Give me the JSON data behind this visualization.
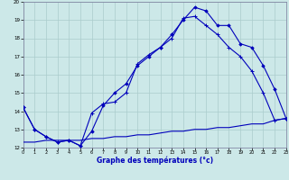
{
  "bg_color": "#cce8e8",
  "grid_color": "#aacccc",
  "line_color": "#0000bb",
  "xlabel": "Graphe des températures (°c)",
  "xlim": [
    0,
    23
  ],
  "ylim": [
    12,
    20
  ],
  "xticks": [
    0,
    1,
    2,
    3,
    4,
    5,
    6,
    7,
    8,
    9,
    10,
    11,
    12,
    13,
    14,
    15,
    16,
    17,
    18,
    19,
    20,
    21,
    22,
    23
  ],
  "yticks": [
    12,
    13,
    14,
    15,
    16,
    17,
    18,
    19,
    20
  ],
  "curve1_x": [
    0,
    1,
    2,
    3,
    4,
    5,
    6,
    7,
    8,
    9,
    10,
    11,
    12,
    13,
    14,
    15,
    16,
    17,
    18,
    19,
    20,
    21,
    22,
    23
  ],
  "curve1_y": [
    14.2,
    13.0,
    12.6,
    12.3,
    12.4,
    12.1,
    12.9,
    14.3,
    15.0,
    15.5,
    16.5,
    17.0,
    17.5,
    18.2,
    19.0,
    19.7,
    19.5,
    18.7,
    18.7,
    17.7,
    17.5,
    16.5,
    15.2,
    13.6
  ],
  "curve2_x": [
    0,
    1,
    2,
    3,
    4,
    5,
    6,
    7,
    8,
    9,
    10,
    11,
    12,
    13,
    14,
    15,
    16,
    17,
    18,
    19,
    20,
    21,
    22,
    23
  ],
  "curve2_y": [
    14.2,
    13.0,
    12.6,
    12.3,
    12.4,
    12.1,
    13.9,
    14.4,
    14.5,
    15.0,
    16.6,
    17.1,
    17.5,
    18.0,
    19.1,
    19.2,
    18.7,
    18.2,
    17.5,
    17.0,
    16.2,
    15.0,
    13.5,
    13.6
  ],
  "curve3_x": [
    0,
    1,
    2,
    3,
    4,
    5,
    6,
    7,
    8,
    9,
    10,
    11,
    12,
    13,
    14,
    15,
    16,
    17,
    18,
    19,
    20,
    21,
    22,
    23
  ],
  "curve3_y": [
    12.3,
    12.3,
    12.4,
    12.4,
    12.4,
    12.4,
    12.5,
    12.5,
    12.6,
    12.6,
    12.7,
    12.7,
    12.8,
    12.9,
    12.9,
    13.0,
    13.0,
    13.1,
    13.1,
    13.2,
    13.3,
    13.3,
    13.5,
    13.6
  ]
}
